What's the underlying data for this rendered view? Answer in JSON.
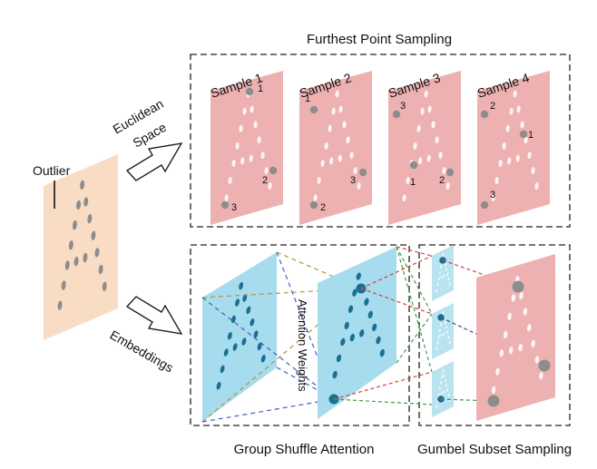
{
  "titles": {
    "top": "Furthest Point Sampling",
    "bottom_left": "Group Shuffle Attention",
    "bottom_right": "Gumbel Subset Sampling"
  },
  "left_labels": {
    "outlier": "Outlier",
    "euclidean_line1": "Euclidean",
    "euclidean_line2": "Space",
    "embeddings": "Embeddings"
  },
  "attention_label": "Attention Weights",
  "samples": [
    {
      "label": "Sample 1",
      "markers": [
        "1",
        "2",
        "3"
      ]
    },
    {
      "label": "Sample 2",
      "markers": [
        "1",
        "2",
        "3"
      ]
    },
    {
      "label": "Sample 3",
      "markers": [
        "1",
        "2",
        "3"
      ]
    },
    {
      "label": "Sample 4",
      "markers": [
        "1",
        "2",
        "3"
      ]
    }
  ],
  "colors": {
    "input_plane": "#f9dcc4",
    "sample_plane": "#eeb1b1",
    "embedding_plane": "#a6dced",
    "embedding_point": "#1b6f93",
    "dashed_box": "#222222",
    "grey_point": "#888888"
  }
}
